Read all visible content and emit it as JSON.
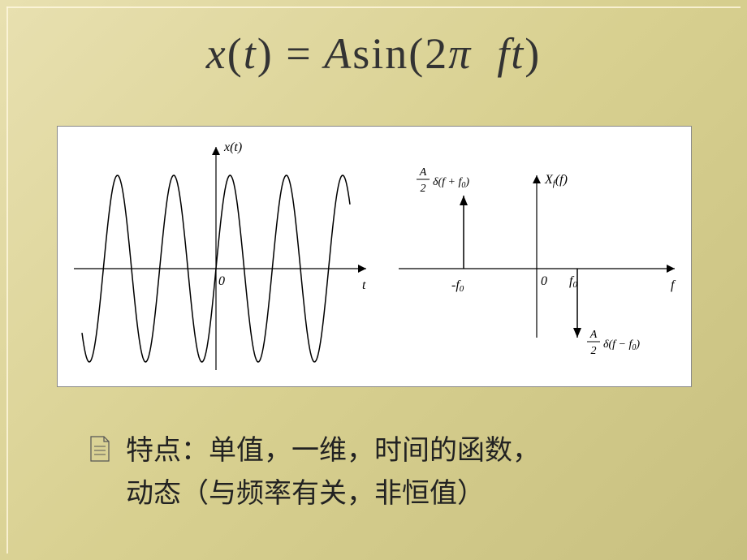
{
  "equation": {
    "x": "x",
    "t": "t",
    "eq": "=",
    "A": "A",
    "sin": "sin(2",
    "pi": "π",
    "ft": "ft",
    "close": ")"
  },
  "left_chart": {
    "type": "line",
    "y_label": "x(t)",
    "x_label": "t",
    "origin_label": "0",
    "axis_color": "#000000",
    "line_color": "#000000",
    "line_width": 1.5,
    "background": "#ffffff",
    "xlim": [
      -6.5,
      6.5
    ],
    "ylim": [
      -1.2,
      1.2
    ],
    "amplitude": 1.0,
    "angular_freq": 2.3
  },
  "right_chart": {
    "type": "impulse",
    "y_label": "X_f(f)",
    "x_label": "f",
    "origin_label": "0",
    "neg_f_label": "-f₀",
    "pos_f_label": "f₀",
    "up_impulse_label_top": "A",
    "up_impulse_label_bot": "2",
    "up_impulse_label_tail": "δ(f + f₀)",
    "down_impulse_label_top": "A",
    "down_impulse_label_bot": "2",
    "down_impulse_label_tail": "δ(f − f₀)",
    "axis_color": "#000000",
    "line_color": "#000000",
    "impulses": [
      {
        "f": -1,
        "mag": 1,
        "dir": "up"
      },
      {
        "f": 1,
        "mag": 1,
        "dir": "down"
      }
    ]
  },
  "bullet": {
    "line1": "特点：单值，一维，时间的函数，",
    "line2": "动态（与频率有关，非恒值）"
  },
  "colors": {
    "slide_bg_from": "#e8e0b0",
    "slide_bg_to": "#c8c080",
    "text": "#222222",
    "bullet_stroke": "#555555"
  }
}
